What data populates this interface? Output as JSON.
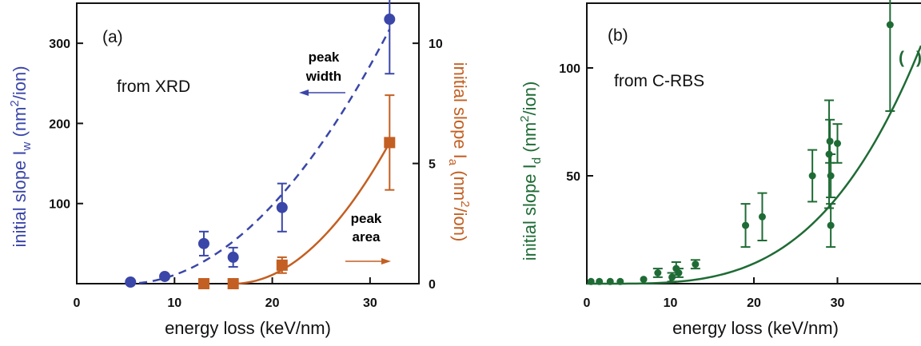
{
  "colors": {
    "blue": "#3a46a8",
    "orange": "#c35f22",
    "green": "#1f6b35",
    "axis": "#111111"
  },
  "chart_data": [
    {
      "type": "scatter",
      "panel_label": "(a)",
      "inner_label": "from XRD",
      "xlabel": "energy loss (keV/nm)",
      "ylabel_left": "initial slope",
      "ylabel_left_sym": "I",
      "ylabel_left_sub": "w",
      "ylabel_left_unit": "(nm",
      "ylabel_left_sup": "2",
      "ylabel_left_unit2": "/ion)",
      "ylabel_right": "initial slope",
      "ylabel_right_sym": "I",
      "ylabel_right_sub": "a",
      "ylabel_right_unit": "(nm",
      "ylabel_right_sup": "2",
      "ylabel_right_unit2": "/ion)",
      "xlim": [
        0,
        35
      ],
      "ylim_left": [
        0,
        350
      ],
      "ylim_right": [
        0,
        11.667
      ],
      "x_ticks": [
        0,
        10,
        20,
        30
      ],
      "y_ticks_left": [
        100,
        200,
        300
      ],
      "y_ticks_right": [
        0,
        5,
        10
      ],
      "annotations": {
        "peak_width": [
          "peak",
          "width"
        ],
        "peak_area": [
          "peak",
          "area"
        ]
      },
      "series": [
        {
          "axis": "left",
          "marker": "circle",
          "color": "#3a46a8",
          "points": [
            {
              "x": 5.5,
              "y": 2,
              "err": 0
            },
            {
              "x": 9.0,
              "y": 9,
              "err": 0
            },
            {
              "x": 13.0,
              "y": 50,
              "err": 15
            },
            {
              "x": 16.0,
              "y": 33,
              "err": 12
            },
            {
              "x": 21.0,
              "y": 95,
              "err": 30
            },
            {
              "x": 32.0,
              "y": 330,
              "err": 68
            }
          ]
        },
        {
          "axis": "right",
          "marker": "square",
          "color": "#c35f22",
          "points": [
            {
              "x": 13.0,
              "y": 0.0,
              "err": 0
            },
            {
              "x": 16.0,
              "y": 0.0,
              "err": 0
            },
            {
              "x": 21.0,
              "y": 0.77,
              "err": 0.33
            },
            {
              "x": 32.0,
              "y": 5.87,
              "err": 1.97
            }
          ]
        }
      ],
      "fits": [
        {
          "axis": "left",
          "style": "dashed",
          "color": "#3a46a8",
          "x0": 5.0,
          "a": 0.4355,
          "power": 2.0,
          "x_from": 5.0,
          "x_to": 32.0
        },
        {
          "axis": "right",
          "style": "solid",
          "color": "#c35f22",
          "x0": 16.0,
          "a": 0.02292,
          "power": 2.0,
          "x_from": 16.0,
          "x_to": 32.0
        }
      ]
    },
    {
      "type": "scatter",
      "panel_label": "(b)",
      "inner_label": "from C-RBS",
      "paren_left": "(",
      "paren_right": ")",
      "xlabel": "energy loss (keV/nm)",
      "ylabel": "initial slope",
      "ylabel_sym": "I",
      "ylabel_sub": "d",
      "ylabel_unit": "(nm",
      "ylabel_sup": "2",
      "ylabel_unit2": "/ion)",
      "xlim": [
        0,
        40
      ],
      "ylim": [
        0,
        130
      ],
      "x_ticks": [
        0,
        10,
        20,
        30
      ],
      "y_ticks": [
        50,
        100
      ],
      "series": [
        {
          "marker": "circle",
          "color": "#1f6b35",
          "points": [
            {
              "x": 0.5,
              "y": 1,
              "err": 0
            },
            {
              "x": 1.5,
              "y": 1,
              "err": 0
            },
            {
              "x": 2.8,
              "y": 1,
              "err": 0
            },
            {
              "x": 4.0,
              "y": 1,
              "err": 0
            },
            {
              "x": 6.8,
              "y": 2,
              "err": 0
            },
            {
              "x": 8.5,
              "y": 5,
              "err": 2
            },
            {
              "x": 10.2,
              "y": 3,
              "err": 2
            },
            {
              "x": 10.7,
              "y": 7,
              "err": 3
            },
            {
              "x": 11.0,
              "y": 5,
              "err": 2
            },
            {
              "x": 13.0,
              "y": 9,
              "err": 2
            },
            {
              "x": 19.0,
              "y": 27,
              "err": 10
            },
            {
              "x": 21.0,
              "y": 31,
              "err": 11
            },
            {
              "x": 27.0,
              "y": 50,
              "err": 12
            },
            {
              "x": 29.0,
              "y": 60,
              "err": 25
            },
            {
              "x": 29.1,
              "y": 66,
              "err": 10
            },
            {
              "x": 29.2,
              "y": 50,
              "err": 10
            },
            {
              "x": 29.2,
              "y": 27,
              "err": 10
            },
            {
              "x": 30.0,
              "y": 65,
              "err": 9
            },
            {
              "x": 36.3,
              "y": 120,
              "err": 40
            }
          ]
        }
      ],
      "fits": [
        {
          "style": "solid",
          "color": "#1f6b35",
          "x0": 2.0,
          "a": 0.000675,
          "power": 3.3,
          "x_from": 0.0,
          "x_to": 40.0
        }
      ]
    }
  ]
}
